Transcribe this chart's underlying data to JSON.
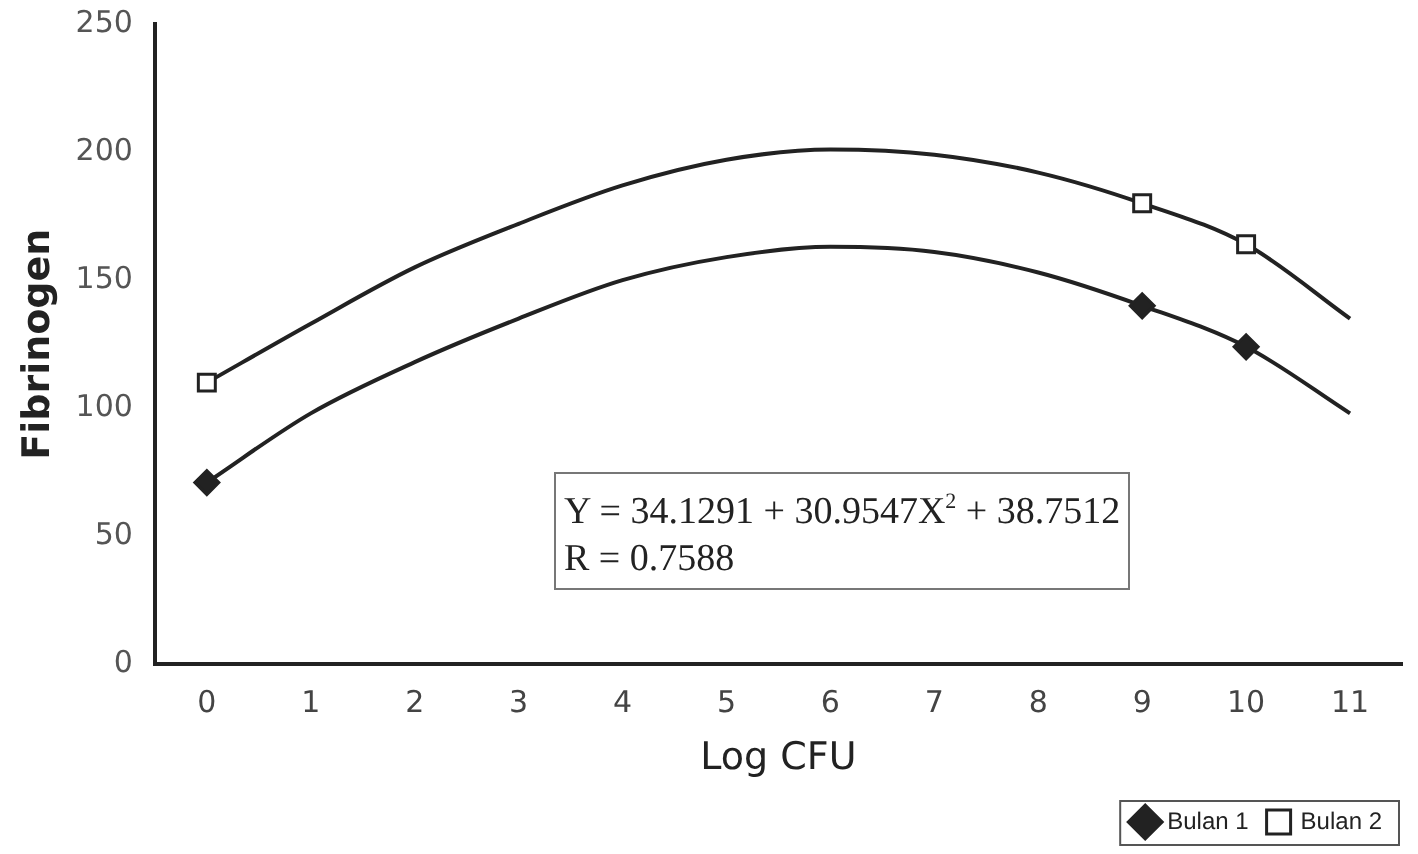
{
  "chart_data": {
    "type": "line",
    "xlabel": "Log CFU",
    "ylabel": "Fibrinogen",
    "categories": [
      "0",
      "1",
      "2",
      "3",
      "4",
      "5",
      "6",
      "7",
      "8",
      "9",
      "10",
      "11"
    ],
    "series": [
      {
        "name": "Bulan 1",
        "type": "scatter",
        "marker": "diamond",
        "color": "#222222",
        "values": [
          71,
          null,
          null,
          null,
          null,
          null,
          null,
          null,
          null,
          140,
          124,
          null
        ]
      },
      {
        "name": "Bulan 2",
        "type": "scatter",
        "marker": "square",
        "color": "#222222",
        "values": [
          110,
          null,
          null,
          null,
          null,
          null,
          null,
          null,
          null,
          180,
          164,
          null
        ]
      },
      {
        "type": "line",
        "marker": "none",
        "color": "#222222",
        "values": [
          71,
          98,
          118,
          135,
          150,
          159,
          163,
          161,
          153,
          140,
          124,
          98
        ]
      },
      {
        "type": "line",
        "marker": "none",
        "color": "#222222",
        "values": [
          110,
          133,
          155,
          172,
          187,
          197,
          201,
          199,
          192,
          180,
          164,
          135
        ]
      }
    ],
    "ylim": [
      0,
      250
    ],
    "yticks": [
      0,
      50,
      100,
      150,
      200,
      250
    ],
    "grid": false,
    "legend": "bottom right",
    "annotations": [
      "Y = 34.1291 + 30.9547X$^{2}$ + 38.7512",
      "R = 0.7588"
    ]
  }
}
